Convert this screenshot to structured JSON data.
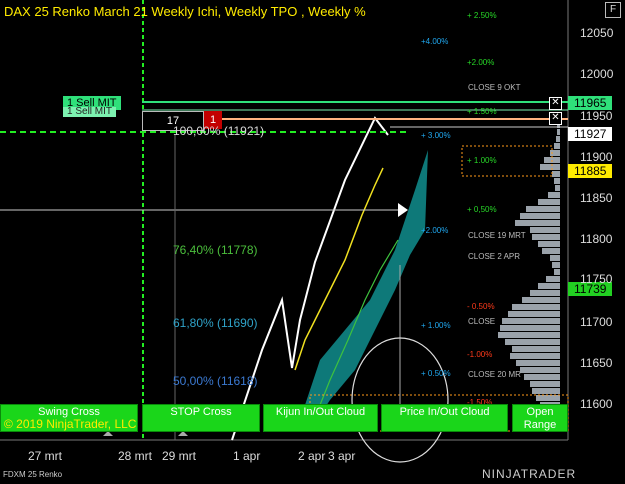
{
  "title": "DAX 25 Renko March 21 Weekly Ichi, Weekly TPO , Weekly %",
  "f_key": "F",
  "orders": {
    "sell_mit_label": "1  Sell MIT",
    "sell_mit_label_echo": "1  Sell MIT",
    "qty": "17",
    "qty_count": "1",
    "close_x": "✕"
  },
  "price_tags": {
    "sell_mit_price": "11965",
    "upper_level": "11927",
    "yellow_level": "11885",
    "green_level": "11739"
  },
  "fib_levels": [
    {
      "label": "100,00% (11921)",
      "color": "#d8d8d8"
    },
    {
      "label": "76,40% (11778)",
      "color": "#4bbf3c"
    },
    {
      "label": "61,80% (11690)",
      "color": "#2fa3c9"
    },
    {
      "label": "50,00% (11618)",
      "color": "#3b79d1"
    }
  ],
  "weekly_pct": [
    {
      "label": "+ 2.50%",
      "color": "#27d827"
    },
    {
      "label": "+4.00%",
      "color": "#20a8f0"
    },
    {
      "label": "+2.00%",
      "color": "#27d827"
    },
    {
      "label": "+ 1.50%",
      "color": "#27d827"
    },
    {
      "label": "+ 3.00%",
      "color": "#20a8f0"
    },
    {
      "label": "+ 1.00%",
      "color": "#27d827"
    },
    {
      "label": "+ 0,50%",
      "color": "#27d827"
    },
    {
      "label": "+2.00%",
      "color": "#20a8f0"
    },
    {
      "label": "- 0.50%",
      "color": "#ff3a1a"
    },
    {
      "label": "+ 1.00%",
      "color": "#20a8f0"
    },
    {
      "label": "-1.00%",
      "color": "#ff3a1a"
    },
    {
      "label": "+ 0.50%",
      "color": "#20a8f0"
    },
    {
      "label": "-1.50%",
      "color": "#ff3a1a"
    }
  ],
  "close_labels": [
    "CLOSE 9 OKT",
    "CLOSE 19 MRT",
    "CLOSE 2 APR",
    "CLOSE",
    "CLOSE 20 MR"
  ],
  "buttons": {
    "swing_cross": "Swing Cross",
    "stop_cross": "STOP Cross",
    "kijun_cloud": "Kijun In/Out Cloud",
    "price_cloud": "Price In/Out Cloud",
    "open_range_1": "Open",
    "open_range_2": "Range"
  },
  "copyright": "© 2019 NinjaTrader, LLC",
  "y_axis": [
    "12050",
    "12000",
    "11950",
    "11900",
    "11850",
    "11800",
    "11750",
    "11700",
    "11650",
    "11600"
  ],
  "x_axis": [
    "27 mrt",
    "28 mrt",
    "29 mrt",
    "1 apr",
    "2 apr",
    "3 apr"
  ],
  "instrument": "FDXM 25 Renko",
  "brand": "NINJATRADER",
  "colors": {
    "background": "#000000",
    "ichimoku_cloud": "#0f7f7f",
    "renko_line": "#ffffff",
    "kijun": "#f0e020",
    "tenkan": "#3ec23e",
    "tpo": "#9aa2aa",
    "buttons": "#1ad61a",
    "sell_mit": "#2fe07a",
    "level_orange": "#ffb380"
  }
}
